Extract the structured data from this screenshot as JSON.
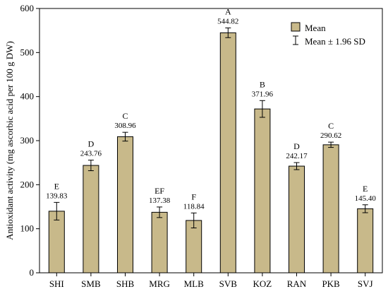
{
  "chart_data": {
    "type": "bar",
    "ylabel": "Antioxidant activity (mg ascorbic acid per 100 g DW)",
    "xlabel": "",
    "ylim": [
      0,
      600
    ],
    "yticks": [
      0,
      100,
      200,
      300,
      400,
      500,
      600
    ],
    "categories": [
      "SHI",
      "SMB",
      "SHB",
      "MRG",
      "MLB",
      "SVB",
      "KOZ",
      "RAN",
      "PKB",
      "SVJ"
    ],
    "series": [
      {
        "name": "Mean",
        "values": [
          139.83,
          243.76,
          308.96,
          137.38,
          118.84,
          544.82,
          371.96,
          242.17,
          290.62,
          145.4
        ],
        "value_labels": [
          "139.83",
          "243.76",
          "308.96",
          "137.38",
          "118.84",
          "544.82",
          "371.96",
          "242.17",
          "290.62",
          "145.40"
        ],
        "error_half_width": [
          20,
          12,
          10,
          12,
          17,
          11,
          19,
          8,
          6,
          9
        ],
        "group_letters": [
          "E",
          "D",
          "C",
          "EF",
          "F",
          "A",
          "B",
          "D",
          "C",
          "E"
        ]
      }
    ],
    "legend": {
      "placement": "top-right",
      "entries": [
        "Mean",
        "Mean ± 1.96 SD"
      ]
    },
    "grid": false,
    "colors": {
      "bar_fill": "#c8b98a",
      "bar_stroke": "#000000",
      "axis": "#000000"
    }
  }
}
